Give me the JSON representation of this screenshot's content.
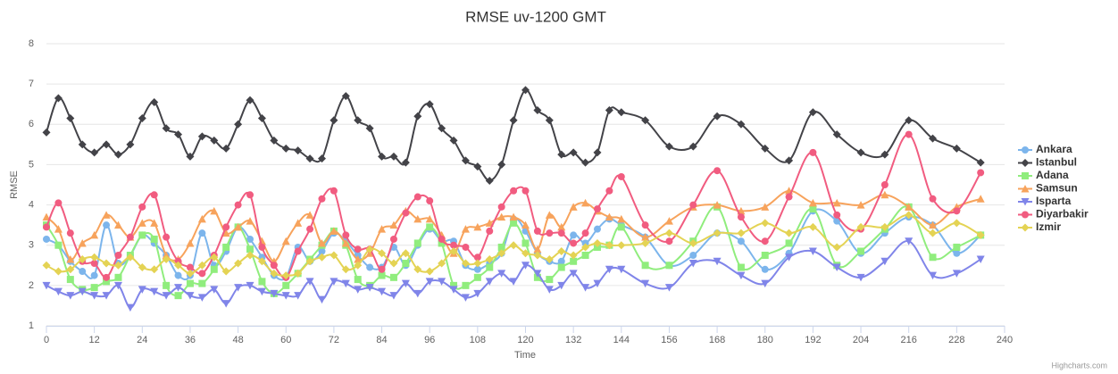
{
  "chart_data": {
    "type": "line",
    "title": "RMSE uv-1200 GMT",
    "x_label": "Time",
    "y_label": "RMSE",
    "credits": "Highcharts.com",
    "x": [
      0,
      3,
      6,
      9,
      12,
      15,
      18,
      21,
      24,
      27,
      30,
      33,
      36,
      39,
      42,
      45,
      48,
      51,
      54,
      57,
      60,
      63,
      66,
      69,
      72,
      75,
      78,
      81,
      84,
      87,
      90,
      93,
      96,
      99,
      102,
      105,
      108,
      111,
      114,
      117,
      120,
      123,
      126,
      129,
      132,
      135,
      138,
      141,
      144,
      150,
      156,
      162,
      168,
      174,
      180,
      186,
      192,
      198,
      204,
      210,
      216,
      222,
      228,
      234
    ],
    "xlim": [
      0,
      240
    ],
    "xticks": [
      0,
      12,
      24,
      36,
      48,
      60,
      72,
      84,
      96,
      108,
      120,
      132,
      144,
      156,
      168,
      180,
      192,
      204,
      216,
      228,
      240
    ],
    "ylim": [
      1,
      8
    ],
    "yticks": [
      1,
      2,
      3,
      4,
      5,
      6,
      7,
      8
    ],
    "grid": true,
    "legend": "right",
    "series": [
      {
        "name": "Ankara",
        "color": "#7cb5ec",
        "marker": "circle",
        "values": [
          3.15,
          3.0,
          2.6,
          2.35,
          2.25,
          3.5,
          2.55,
          2.75,
          3.25,
          3.05,
          2.75,
          2.25,
          2.25,
          3.3,
          2.5,
          2.85,
          3.45,
          3.15,
          2.7,
          2.25,
          2.2,
          2.95,
          2.6,
          2.85,
          3.3,
          3.1,
          2.75,
          2.45,
          2.45,
          2.95,
          2.5,
          3.0,
          3.4,
          3.1,
          3.1,
          2.5,
          2.4,
          2.55,
          2.8,
          3.65,
          3.35,
          2.8,
          2.6,
          2.6,
          3.25,
          3.05,
          3.4,
          3.65,
          3.5,
          3.2,
          2.5,
          2.75,
          3.3,
          3.1,
          2.4,
          2.8,
          3.85,
          3.6,
          2.8,
          3.3,
          3.7,
          3.5,
          2.8,
          3.25
        ]
      },
      {
        "name": "Istanbul",
        "color": "#434348",
        "marker": "diamond",
        "values": [
          5.8,
          6.65,
          6.15,
          5.5,
          5.3,
          5.5,
          5.25,
          5.5,
          6.15,
          6.55,
          5.9,
          5.75,
          5.2,
          5.7,
          5.6,
          5.4,
          6.0,
          6.6,
          6.15,
          5.6,
          5.4,
          5.35,
          5.15,
          5.15,
          6.1,
          6.7,
          6.1,
          5.9,
          5.2,
          5.2,
          5.05,
          6.2,
          6.5,
          5.9,
          5.6,
          5.1,
          4.95,
          4.6,
          5.0,
          6.1,
          6.85,
          6.35,
          6.1,
          5.25,
          5.3,
          5.05,
          5.3,
          6.35,
          6.3,
          6.1,
          5.45,
          5.45,
          6.2,
          6.0,
          5.4,
          5.1,
          6.3,
          5.75,
          5.3,
          5.25,
          6.1,
          5.65,
          5.4,
          5.05
        ]
      },
      {
        "name": "Adana",
        "color": "#90ed7d",
        "marker": "square",
        "values": [
          3.5,
          3.0,
          2.15,
          1.9,
          1.95,
          2.1,
          2.2,
          2.75,
          3.25,
          3.15,
          2.0,
          1.75,
          2.05,
          2.05,
          2.4,
          2.95,
          3.45,
          2.9,
          2.1,
          1.8,
          2.0,
          2.3,
          2.65,
          3.0,
          3.35,
          3.0,
          2.15,
          2.0,
          2.25,
          2.2,
          2.55,
          3.05,
          3.45,
          3.05,
          2.0,
          2.0,
          2.2,
          2.45,
          2.95,
          3.55,
          3.05,
          2.2,
          2.15,
          2.45,
          2.6,
          2.75,
          2.95,
          3.0,
          3.45,
          2.5,
          2.5,
          3.1,
          3.95,
          2.45,
          2.75,
          3.05,
          3.9,
          2.5,
          2.85,
          3.4,
          3.95,
          2.7,
          2.95,
          3.25
        ]
      },
      {
        "name": "Samsun",
        "color": "#f7a35c",
        "marker": "triangle",
        "values": [
          3.7,
          3.4,
          2.65,
          3.05,
          3.25,
          3.75,
          3.5,
          3.2,
          3.55,
          3.55,
          2.75,
          2.65,
          3.05,
          3.65,
          3.85,
          3.3,
          3.45,
          3.6,
          3.1,
          2.6,
          3.1,
          3.55,
          3.75,
          3.05,
          3.35,
          3.05,
          2.65,
          2.8,
          3.4,
          3.5,
          3.85,
          3.65,
          3.65,
          3.25,
          2.8,
          3.4,
          3.45,
          3.55,
          3.7,
          3.7,
          3.5,
          2.9,
          3.75,
          3.45,
          3.95,
          4.05,
          3.85,
          3.7,
          3.65,
          3.2,
          3.6,
          3.95,
          4.0,
          3.85,
          3.95,
          4.35,
          4.05,
          4.05,
          4.0,
          4.25,
          3.95,
          3.5,
          3.95,
          4.15
        ]
      },
      {
        "name": "Isparta",
        "color": "#8085e9",
        "marker": "triangle-down",
        "values": [
          2.0,
          1.85,
          1.75,
          1.85,
          1.75,
          1.75,
          2.0,
          1.45,
          1.9,
          1.85,
          1.75,
          1.95,
          1.75,
          1.7,
          1.9,
          1.55,
          1.95,
          2.0,
          1.85,
          1.8,
          1.75,
          1.75,
          2.1,
          1.65,
          2.1,
          2.05,
          1.9,
          1.95,
          1.85,
          1.75,
          2.05,
          1.8,
          2.1,
          2.1,
          1.9,
          1.7,
          1.8,
          2.1,
          2.3,
          2.1,
          2.5,
          2.3,
          1.9,
          2.0,
          2.3,
          1.95,
          2.05,
          2.4,
          2.4,
          2.05,
          1.95,
          2.55,
          2.6,
          2.25,
          2.05,
          2.7,
          2.85,
          2.45,
          2.2,
          2.6,
          3.1,
          2.25,
          2.3,
          2.65
        ]
      },
      {
        "name": "Diyarbakir",
        "color": "#f15c80",
        "marker": "circle",
        "values": [
          3.45,
          4.05,
          3.3,
          2.6,
          2.55,
          2.2,
          2.75,
          3.2,
          3.95,
          4.25,
          3.2,
          2.6,
          2.45,
          2.3,
          2.75,
          3.45,
          4.0,
          4.25,
          2.95,
          2.5,
          2.2,
          2.85,
          3.4,
          4.15,
          4.35,
          3.25,
          2.9,
          2.9,
          2.4,
          3.15,
          3.8,
          4.2,
          4.1,
          3.15,
          3.0,
          2.95,
          2.7,
          3.35,
          3.95,
          4.35,
          4.35,
          3.35,
          3.3,
          3.3,
          3.05,
          3.3,
          3.9,
          4.35,
          4.7,
          3.5,
          3.1,
          4.0,
          4.85,
          3.7,
          3.1,
          4.2,
          5.3,
          3.75,
          3.4,
          4.5,
          5.75,
          4.15,
          3.85,
          4.8
        ]
      },
      {
        "name": "Izmir",
        "color": "#e4d354",
        "marker": "diamond",
        "values": [
          2.5,
          2.35,
          2.4,
          2.65,
          2.7,
          2.55,
          2.5,
          2.7,
          2.45,
          2.4,
          2.65,
          2.5,
          2.3,
          2.5,
          2.7,
          2.35,
          2.55,
          2.75,
          2.6,
          2.3,
          2.25,
          2.3,
          2.6,
          2.7,
          2.75,
          2.4,
          2.5,
          2.9,
          2.8,
          2.55,
          2.8,
          2.4,
          2.35,
          2.55,
          2.85,
          2.55,
          2.55,
          2.65,
          2.8,
          3.0,
          2.8,
          2.75,
          2.65,
          2.85,
          2.75,
          2.95,
          3.05,
          3.0,
          3.0,
          3.05,
          3.3,
          3.05,
          3.3,
          3.3,
          3.55,
          3.3,
          3.45,
          2.95,
          3.45,
          3.45,
          3.75,
          3.3,
          3.55,
          3.25
        ]
      }
    ]
  }
}
